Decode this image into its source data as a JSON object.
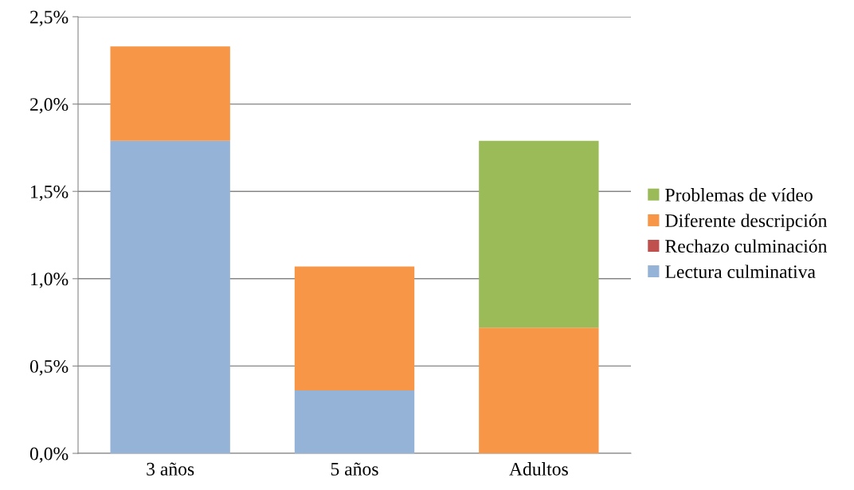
{
  "chart_data": {
    "type": "bar",
    "stacked": true,
    "categories": [
      "3 años",
      "5 años",
      "Adultos"
    ],
    "series": [
      {
        "name": "Lectura culminativa",
        "color": "#95b3d7",
        "values": [
          1.79,
          0.36,
          0
        ]
      },
      {
        "name": "Rechazo culminación",
        "color": "#c0504d",
        "values": [
          0,
          0,
          0
        ]
      },
      {
        "name": "Diferente descripción",
        "color": "#f79646",
        "values": [
          0.54,
          0.71,
          0.72
        ]
      },
      {
        "name": "Problemas de vídeo",
        "color": "#9bbb59",
        "values": [
          0,
          0,
          1.07
        ]
      }
    ],
    "ylim": [
      0,
      2.5
    ],
    "yticks": [
      {
        "value": 0,
        "label": "0,0%"
      },
      {
        "value": 0.5,
        "label": "0,5%"
      },
      {
        "value": 1.0,
        "label": "1,0%"
      },
      {
        "value": 1.5,
        "label": "1,5%"
      },
      {
        "value": 2.0,
        "label": "2,0%"
      },
      {
        "value": 2.5,
        "label": "2,5%"
      }
    ],
    "grid": "y",
    "legend": "right"
  }
}
